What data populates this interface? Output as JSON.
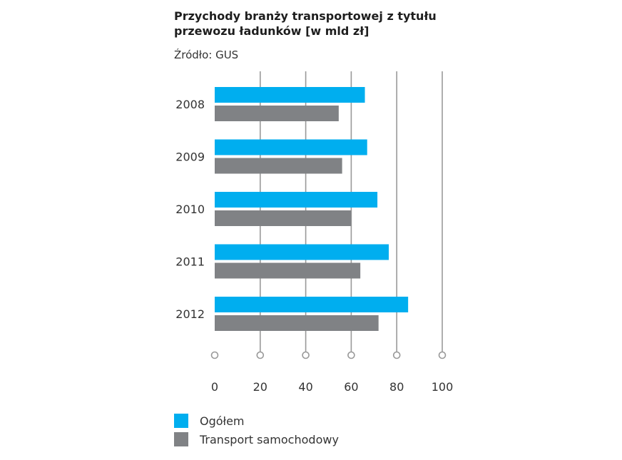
{
  "chart_data": {
    "type": "bar",
    "orientation": "horizontal",
    "title_line1": "Przychody branży transportowej z tytułu",
    "title_line2": "przewozu ładunków [w mld zł]",
    "source": "Źródło: GUS",
    "categories": [
      "2008",
      "2009",
      "2010",
      "2011",
      "2012"
    ],
    "series": [
      {
        "name": "Ogółem",
        "color": "#00aeef",
        "values": [
          66,
          67,
          71.5,
          76.5,
          85
        ]
      },
      {
        "name": "Transport samochodowy",
        "color": "#808285",
        "values": [
          54.5,
          56,
          60,
          64,
          72
        ]
      }
    ],
    "xlim": [
      0,
      100
    ],
    "xticks": [
      "0",
      "20",
      "40",
      "60",
      "80",
      "100"
    ],
    "grid": true,
    "legend_position": "bottom-left"
  }
}
